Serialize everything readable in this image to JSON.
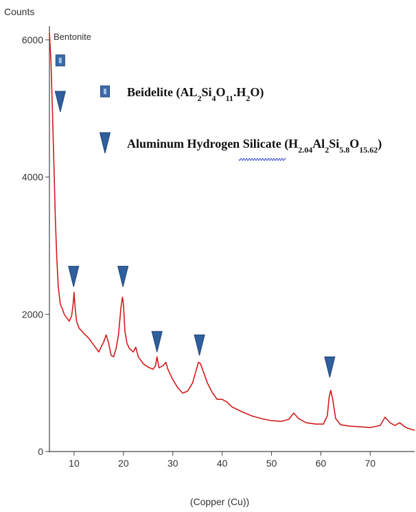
{
  "chart_data": {
    "type": "line",
    "ylabel": "Counts",
    "xlabel": "(Copper (Cu))",
    "series_label": "Bentonite",
    "xlim": [
      5,
      79
    ],
    "ylim": [
      0,
      6200
    ],
    "xticks": [
      10,
      20,
      30,
      40,
      50,
      60,
      70
    ],
    "yticks": [
      0,
      2000,
      4000,
      6000
    ],
    "grid": false,
    "colors": {
      "line": "#d11a1a",
      "square_marker": "#3b6aa8",
      "triangle_marker": "#2f5f9c",
      "axis": "#444444"
    },
    "series": [
      {
        "name": "Bentonite",
        "x": [
          5,
          5.3,
          5.6,
          5.9,
          6.2,
          6.5,
          6.8,
          7.2,
          7.6,
          8,
          8.5,
          9,
          9.5,
          9.8,
          10,
          10.2,
          10.5,
          11,
          12,
          13,
          14,
          15,
          16,
          16.5,
          17,
          17.5,
          18,
          18.5,
          19,
          19.5,
          19.8,
          20,
          20.3,
          20.7,
          21.2,
          22,
          22.5,
          23,
          24,
          25,
          26,
          26.5,
          26.8,
          27.2,
          28,
          28.6,
          29,
          30,
          31,
          32,
          33,
          34,
          34.8,
          35.2,
          35.6,
          36,
          37,
          38,
          39,
          40,
          41,
          42,
          44,
          46,
          48,
          50,
          52,
          53.5,
          54.5,
          55.5,
          57,
          59,
          60.5,
          61.3,
          61.7,
          62,
          62.4,
          63,
          64,
          66,
          68,
          70,
          72,
          73,
          74,
          75,
          76,
          77,
          78,
          79
        ],
        "y": [
          6100,
          5700,
          5000,
          4200,
          3400,
          2800,
          2400,
          2150,
          2080,
          2000,
          1950,
          1900,
          1980,
          2150,
          2320,
          2100,
          1900,
          1800,
          1720,
          1650,
          1550,
          1450,
          1600,
          1700,
          1580,
          1400,
          1380,
          1500,
          1700,
          2100,
          2250,
          2150,
          1750,
          1580,
          1500,
          1450,
          1520,
          1380,
          1280,
          1230,
          1200,
          1250,
          1380,
          1220,
          1250,
          1300,
          1200,
          1050,
          930,
          850,
          880,
          1000,
          1200,
          1300,
          1280,
          1200,
          1000,
          860,
          760,
          760,
          720,
          650,
          580,
          520,
          480,
          450,
          440,
          470,
          560,
          480,
          420,
          400,
          400,
          520,
          800,
          890,
          760,
          480,
          390,
          370,
          360,
          350,
          380,
          500,
          420,
          380,
          420,
          360,
          330,
          310
        ]
      }
    ],
    "annotations": {
      "square_markers": [
        {
          "x": 7.2,
          "y": 5700
        }
      ],
      "triangle_markers": [
        {
          "x": 7.2,
          "y": 5100
        },
        {
          "x": 9.9,
          "y": 2550
        },
        {
          "x": 19.9,
          "y": 2550
        },
        {
          "x": 26.8,
          "y": 1600
        },
        {
          "x": 35.4,
          "y": 1550
        },
        {
          "x": 61.8,
          "y": 1230
        }
      ]
    },
    "legend": {
      "placement": "top-center",
      "entries": [
        {
          "marker": "square",
          "label": "Beidelite",
          "formula_parts": [
            {
              "t": "(AL"
            },
            {
              "t": "2",
              "s": "sub"
            },
            {
              "t": "Si"
            },
            {
              "t": "4",
              "s": "sub"
            },
            {
              "t": "O"
            },
            {
              "t": "11",
              "s": "sub"
            },
            {
              "t": ".H"
            },
            {
              "t": "2",
              "s": "sub"
            },
            {
              "t": "O)"
            }
          ]
        },
        {
          "marker": "triangle",
          "label": "Aluminum Hydrogen Silicate",
          "formula_parts": [
            {
              "t": "(H"
            },
            {
              "t": "2.04",
              "s": "sub"
            },
            {
              "t": "Al"
            },
            {
              "t": "2",
              "s": "sub"
            },
            {
              "t": "Si"
            },
            {
              "t": "5.8",
              "s": "sub"
            },
            {
              "t": "O"
            },
            {
              "t": "15.62",
              "s": "sub"
            },
            {
              "t": ")"
            }
          ]
        }
      ]
    }
  }
}
